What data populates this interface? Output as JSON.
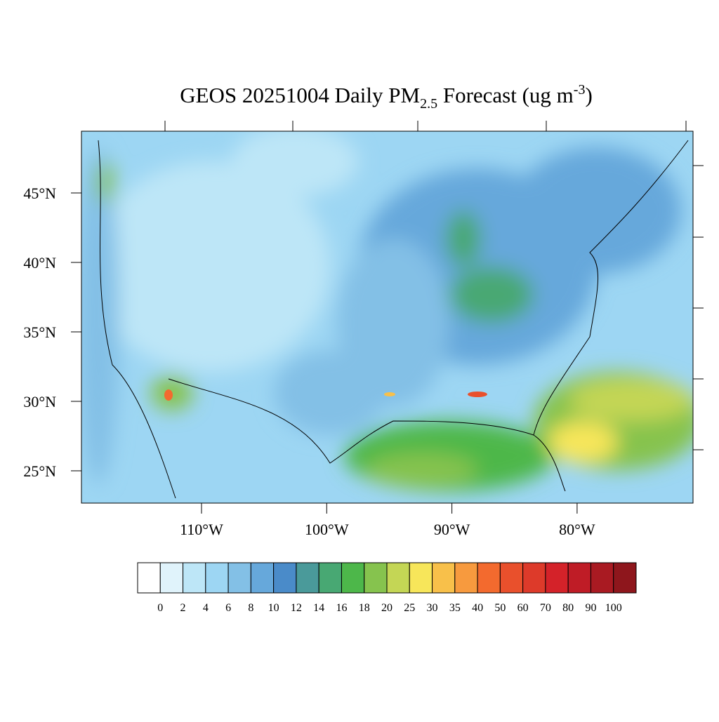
{
  "map": {
    "title": {
      "main": "GEOS 20251004 Daily PM",
      "subscript": "2.5",
      "after": " Forecast (ug m",
      "superscript": "-3",
      "close": ")"
    },
    "lat_ticks": [
      {
        "value": 45,
        "label": "45°N"
      },
      {
        "value": 40,
        "label": "40°N"
      },
      {
        "value": 35,
        "label": "35°N"
      },
      {
        "value": 30,
        "label": "30°N"
      },
      {
        "value": 25,
        "label": "25°N"
      }
    ],
    "lon_ticks": [
      {
        "value": -110,
        "label": "110°W"
      },
      {
        "value": -100,
        "label": "100°W"
      },
      {
        "value": -90,
        "label": "90°W"
      },
      {
        "value": -80,
        "label": "80°W"
      }
    ],
    "colorbar": {
      "levels": [
        0,
        2,
        4,
        6,
        8,
        10,
        12,
        14,
        16,
        18,
        20,
        25,
        30,
        35,
        40,
        50,
        60,
        70,
        80,
        90,
        100
      ],
      "colors": [
        "#ffffff",
        "#e0f3fb",
        "#bde6f7",
        "#9dd6f3",
        "#83c0e6",
        "#66a8db",
        "#4a8bc9",
        "#4a9a9a",
        "#48a873",
        "#4db74a",
        "#86c34e",
        "#c4d655",
        "#f7e65a",
        "#f8c04a",
        "#f79a3e",
        "#f36a2e",
        "#e9502c",
        "#dd3a2a",
        "#d42229",
        "#bf1c26",
        "#a91a22",
        "#8e161c"
      ]
    }
  }
}
